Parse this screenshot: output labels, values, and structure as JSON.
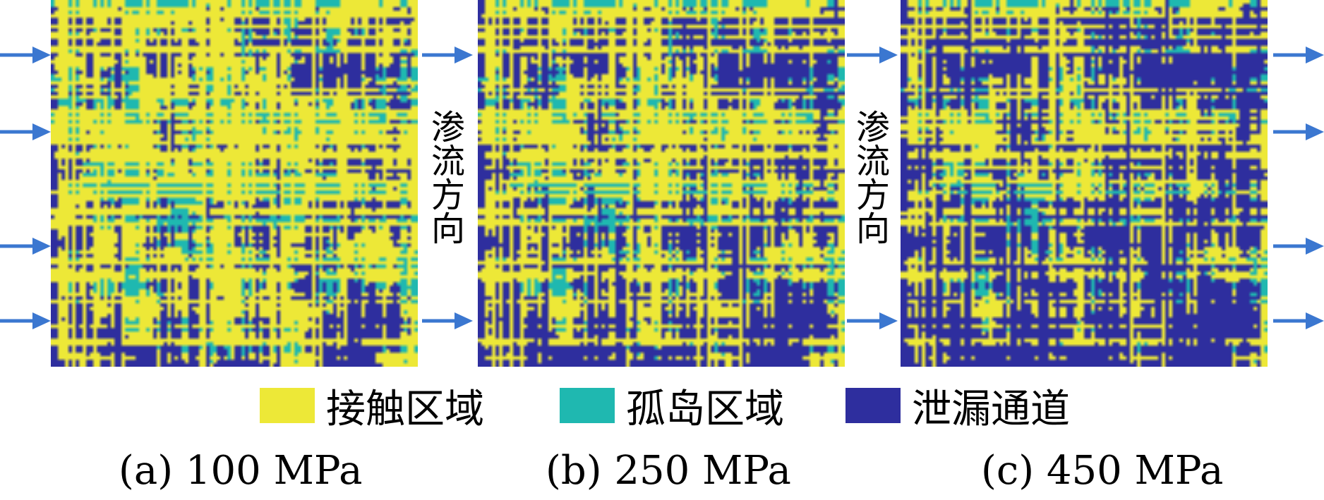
{
  "colors": {
    "contact": "#EDE837",
    "island": "#1FB8B0",
    "leak": "#2E2E9E",
    "arrow": "#3B77D0"
  },
  "flow_direction_label": "渗流方向",
  "legend": [
    {
      "label": "接触区域",
      "color_key": "contact"
    },
    {
      "label": "孤岛区域",
      "color_key": "island"
    },
    {
      "label": "泄漏通道",
      "color_key": "leak"
    }
  ],
  "panels": [
    {
      "caption": "(a) 100 MPa"
    },
    {
      "caption": "(b) 250 MPa"
    },
    {
      "caption": "(c) 450 MPa"
    }
  ]
}
